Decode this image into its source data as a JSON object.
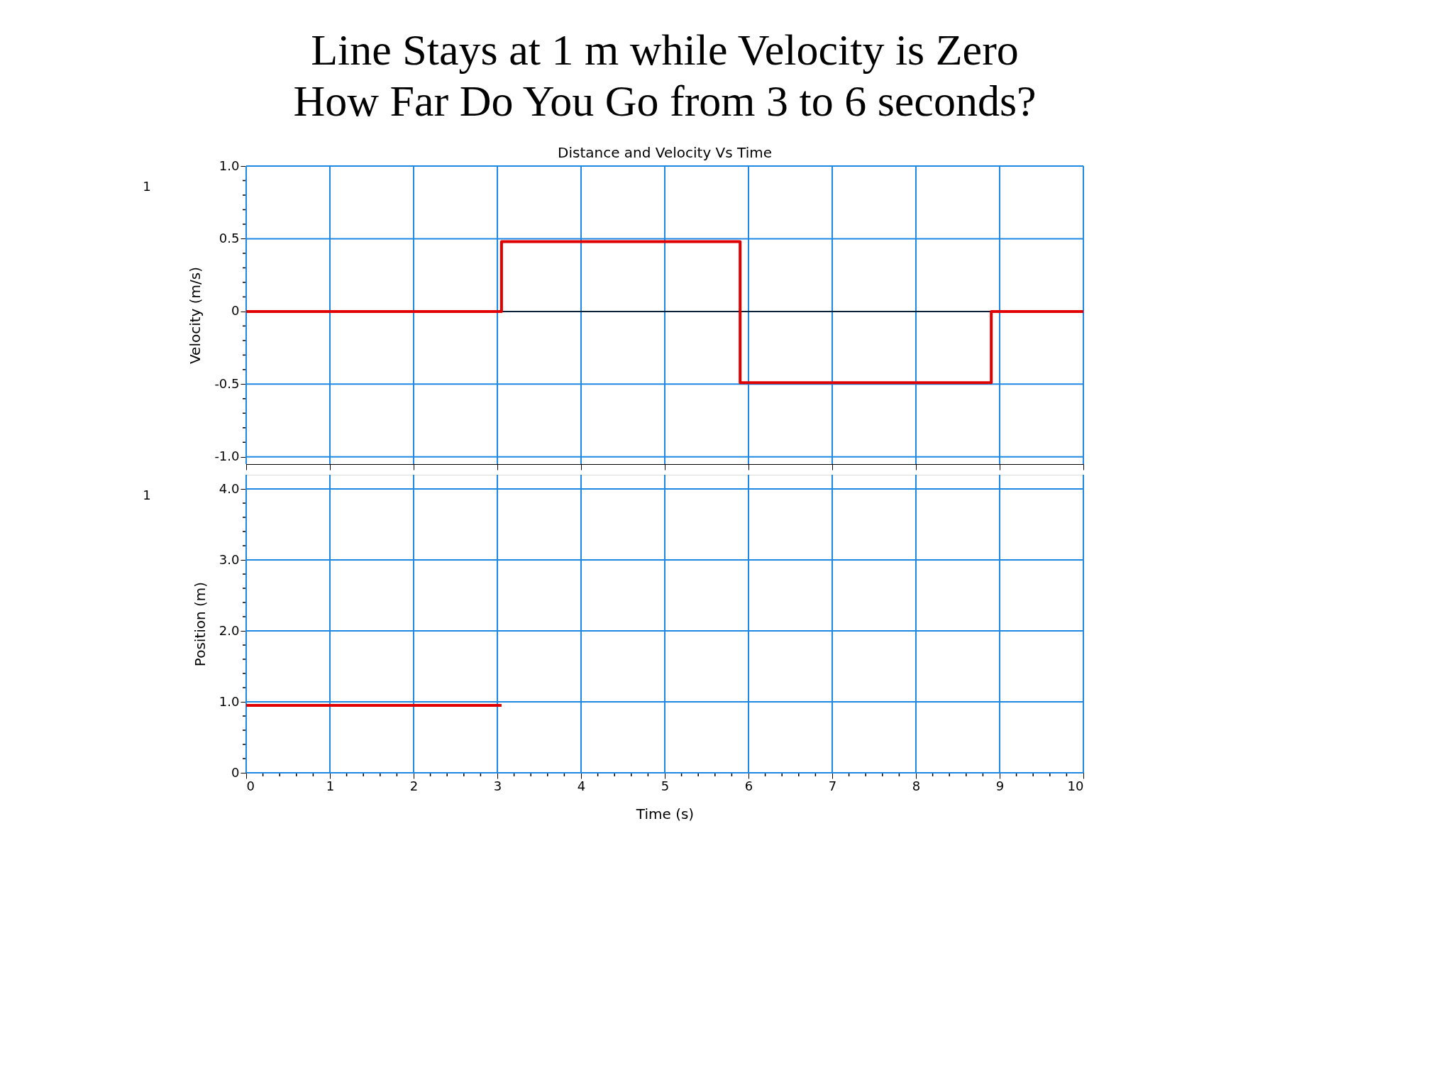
{
  "chart_data": [
    {
      "type": "step",
      "title": "Line Stays at 1 m while Velocity is Zero",
      "subtitle": "How Far Do You Go from 3 to 6 seconds?",
      "annotations": [
        "Distance and Velocity Vs Time",
        "1"
      ],
      "ylabel": "Velocity (m/s)",
      "x": [
        0,
        3.05,
        5.9,
        8.9,
        10
      ],
      "series": [
        {
          "color": "#e00000",
          "values": [
            0,
            0.48,
            -0.49,
            0,
            0
          ]
        }
      ],
      "xlim": [
        0,
        10
      ],
      "ylim": [
        -1.05,
        1.0
      ],
      "yticks": [
        {
          "value": -1,
          "label": "-1.0"
        },
        {
          "value": -0.9,
          "label": null
        },
        {
          "value": -0.8,
          "label": null
        },
        {
          "value": -0.7,
          "label": null
        },
        {
          "value": -0.6,
          "label": null
        },
        -0.5,
        {
          "value": -0.4,
          "label": null
        },
        {
          "value": -0.3,
          "label": null
        },
        {
          "value": -0.2,
          "label": null
        },
        {
          "value": -0.1,
          "label": null
        },
        0,
        {
          "value": 0.1,
          "label": null
        },
        {
          "value": 0.2,
          "label": null
        },
        {
          "value": 0.3,
          "label": null
        },
        {
          "value": 0.4,
          "label": null
        },
        0.5,
        {
          "value": 0.6,
          "label": null
        },
        {
          "value": 0.7,
          "label": null
        },
        {
          "value": 0.8,
          "label": null
        },
        {
          "value": 0.9,
          "label": null
        },
        {
          "value": 1,
          "label": "1.0"
        }
      ],
      "xticks": [
        0,
        1,
        2,
        3,
        4,
        5,
        6,
        7,
        8,
        9,
        10
      ],
      "ref_lines": [
        {
          "axis": "y",
          "value": 0,
          "color": "#000000"
        }
      ],
      "grid": true,
      "legend": false,
      "tick_labels": "y",
      "line_style": "solid"
    },
    {
      "type": "line",
      "annotations": [
        "1"
      ],
      "xlabel": "Time (s)",
      "ylabel": "Position (m)",
      "x": [
        0,
        3.05
      ],
      "series": [
        {
          "color": "#e00000",
          "values": [
            0.95,
            0.95
          ]
        }
      ],
      "xlim": [
        0,
        10
      ],
      "ylim": [
        0,
        4.2
      ],
      "yticks": [
        0,
        {
          "value": 0.2,
          "label": null
        },
        {
          "value": 0.4,
          "label": null
        },
        {
          "value": 0.6,
          "label": null
        },
        {
          "value": 0.8,
          "label": null
        },
        {
          "value": 1,
          "label": "1.0"
        },
        {
          "value": 1.2,
          "label": null
        },
        {
          "value": 1.4,
          "label": null
        },
        {
          "value": 1.6,
          "label": null
        },
        {
          "value": 1.8,
          "label": null
        },
        {
          "value": 2,
          "label": "2.0"
        },
        {
          "value": 2.2,
          "label": null
        },
        {
          "value": 2.4,
          "label": null
        },
        {
          "value": 2.6,
          "label": null
        },
        {
          "value": 2.8,
          "label": null
        },
        {
          "value": 3,
          "label": "3.0"
        },
        {
          "value": 3.2,
          "label": null
        },
        {
          "value": 3.4,
          "label": null
        },
        {
          "value": 3.6,
          "label": null
        },
        {
          "value": 3.8,
          "label": null
        },
        {
          "value": 4,
          "label": "4.0"
        }
      ],
      "xticks": [
        0,
        {
          "value": 0.2,
          "label": null
        },
        {
          "value": 0.4,
          "label": null
        },
        {
          "value": 0.6,
          "label": null
        },
        {
          "value": 0.8,
          "label": null
        },
        1,
        {
          "value": 1.2,
          "label": null
        },
        {
          "value": 1.4,
          "label": null
        },
        {
          "value": 1.6,
          "label": null
        },
        {
          "value": 1.8,
          "label": null
        },
        2,
        {
          "value": 2.2,
          "label": null
        },
        {
          "value": 2.4,
          "label": null
        },
        {
          "value": 2.6,
          "label": null
        },
        {
          "value": 2.8,
          "label": null
        },
        3,
        {
          "value": 3.2,
          "label": null
        },
        {
          "value": 3.4,
          "label": null
        },
        {
          "value": 3.6,
          "label": null
        },
        {
          "value": 3.8,
          "label": null
        },
        4,
        {
          "value": 4.2,
          "label": null
        },
        {
          "value": 4.4,
          "label": null
        },
        {
          "value": 4.6,
          "label": null
        },
        {
          "value": 4.8,
          "label": null
        },
        5,
        {
          "value": 5.2,
          "label": null
        },
        {
          "value": 5.4,
          "label": null
        },
        {
          "value": 5.6,
          "label": null
        },
        {
          "value": 5.8,
          "label": null
        },
        6,
        {
          "value": 6.2,
          "label": null
        },
        {
          "value": 6.4,
          "label": null
        },
        {
          "value": 6.6,
          "label": null
        },
        {
          "value": 6.8,
          "label": null
        },
        7,
        {
          "value": 7.2,
          "label": null
        },
        {
          "value": 7.4,
          "label": null
        },
        {
          "value": 7.6,
          "label": null
        },
        {
          "value": 7.8,
          "label": null
        },
        8,
        {
          "value": 8.2,
          "label": null
        },
        {
          "value": 8.4,
          "label": null
        },
        {
          "value": 8.6,
          "label": null
        },
        {
          "value": 8.8,
          "label": null
        },
        9,
        {
          "value": 9.2,
          "label": null
        },
        {
          "value": 9.4,
          "label": null
        },
        {
          "value": 9.6,
          "label": null
        },
        {
          "value": 9.8,
          "label": null
        },
        10
      ],
      "grid": true,
      "legend": false,
      "line_style": "solid"
    }
  ]
}
